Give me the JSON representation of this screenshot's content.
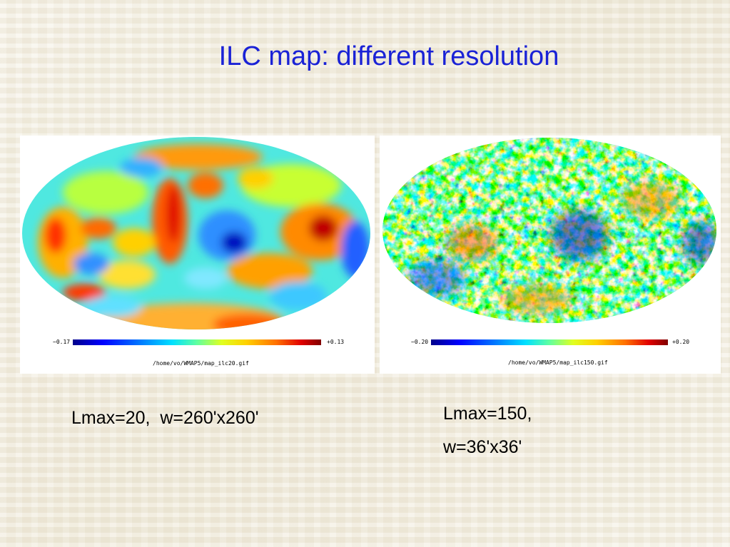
{
  "slide": {
    "title": "ILC map: different resolution"
  },
  "maps": [
    {
      "scale_min": "−0.17",
      "scale_max": "+0.13",
      "path": "/home/vo/WMAP5/map_ilc20.gif"
    },
    {
      "scale_min": "−0.20",
      "scale_max": "+0.20",
      "path": "/home/vo/WMAP5/map_ilc150.gif"
    }
  ],
  "captions": {
    "left": "Lmax=20,  w=260'x260'",
    "right_line1": "Lmax=150,",
    "right_line2": "w=36'x36'"
  },
  "colors": {
    "title": "#1a22d6",
    "background": "#f3efe2"
  }
}
